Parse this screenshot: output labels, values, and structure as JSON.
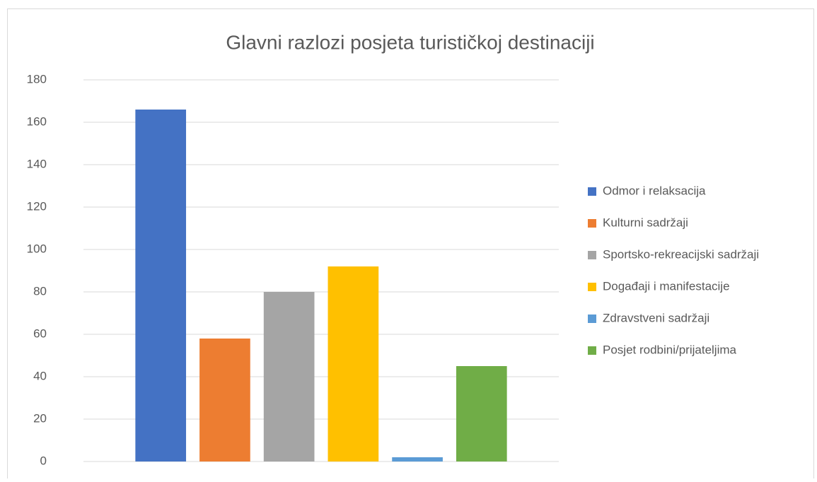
{
  "chart_data": {
    "type": "bar",
    "title": "Glavni razlozi posjeta turističkoj destinaciji",
    "categories": [
      null
    ],
    "series": [
      {
        "name": "Odmor i relaksacija",
        "color": "#4472c4",
        "values": [
          166
        ]
      },
      {
        "name": "Kulturni sadržaji",
        "color": "#ed7d31",
        "values": [
          58
        ]
      },
      {
        "name": "Sportsko-rekreacijski sadržaji",
        "color": "#a5a5a5",
        "values": [
          80
        ]
      },
      {
        "name": "Događaji i manifestacije",
        "color": "#ffc000",
        "values": [
          92
        ]
      },
      {
        "name": "Zdravstveni sadržaji",
        "color": "#5b9bd5",
        "values": [
          2
        ]
      },
      {
        "name": "Posjet rodbini/prijateljima",
        "color": "#70ad47",
        "values": [
          45
        ]
      }
    ],
    "ylim": [
      0,
      180
    ],
    "yticks": [
      0,
      20,
      40,
      60,
      80,
      100,
      120,
      140,
      160,
      180
    ],
    "grid": true,
    "legend": "right"
  }
}
